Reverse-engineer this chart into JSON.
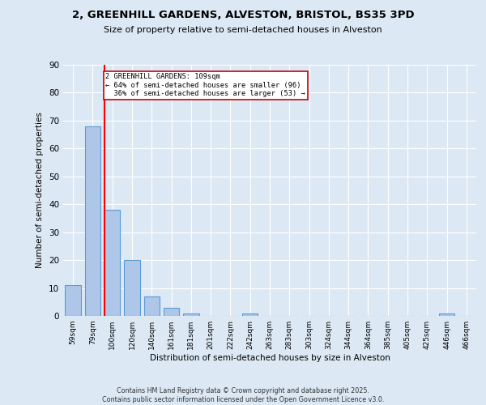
{
  "title": "2, GREENHILL GARDENS, ALVESTON, BRISTOL, BS35 3PD",
  "subtitle": "Size of property relative to semi-detached houses in Alveston",
  "xlabel": "Distribution of semi-detached houses by size in Alveston",
  "ylabel": "Number of semi-detached properties",
  "footer_line1": "Contains HM Land Registry data © Crown copyright and database right 2025.",
  "footer_line2": "Contains public sector information licensed under the Open Government Licence v3.0.",
  "categories": [
    "59sqm",
    "79sqm",
    "100sqm",
    "120sqm",
    "140sqm",
    "161sqm",
    "181sqm",
    "201sqm",
    "222sqm",
    "242sqm",
    "263sqm",
    "283sqm",
    "303sqm",
    "324sqm",
    "344sqm",
    "364sqm",
    "385sqm",
    "405sqm",
    "425sqm",
    "446sqm",
    "466sqm"
  ],
  "values": [
    11,
    68,
    38,
    20,
    7,
    3,
    1,
    0,
    0,
    1,
    0,
    0,
    0,
    0,
    0,
    0,
    0,
    0,
    0,
    1,
    0
  ],
  "bar_color": "#aec6e8",
  "bar_edge_color": "#5b9bd5",
  "background_color": "#dce9f5",
  "grid_color": "#ffffff",
  "red_line_index": 2,
  "annotation_text": "2 GREENHILL GARDENS: 109sqm\n← 64% of semi-detached houses are smaller (96)\n  36% of semi-detached houses are larger (53) →",
  "annotation_box_color": "#ffffff",
  "annotation_box_edge": "#cc0000",
  "ylim": [
    0,
    90
  ],
  "yticks": [
    0,
    10,
    20,
    30,
    40,
    50,
    60,
    70,
    80,
    90
  ]
}
